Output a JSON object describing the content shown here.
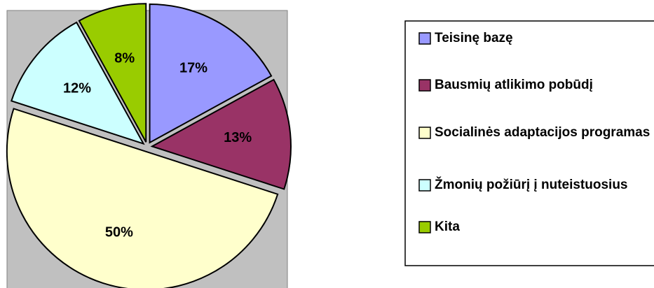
{
  "chart_data": {
    "type": "pie",
    "categories": [
      "Teisinę bazę",
      "Bausmių atlikimo pobūdį",
      "Socialinės adaptacijos programas",
      "Žmonių požiūrį į nuteistuosius",
      "Kita"
    ],
    "values": [
      17,
      13,
      50,
      12,
      8
    ],
    "value_labels": [
      "17%",
      "13%",
      "50%",
      "12%",
      "8%"
    ],
    "colors": [
      "#9999ff",
      "#993366",
      "#ffffcc",
      "#ccffff",
      "#99cc00"
    ]
  }
}
